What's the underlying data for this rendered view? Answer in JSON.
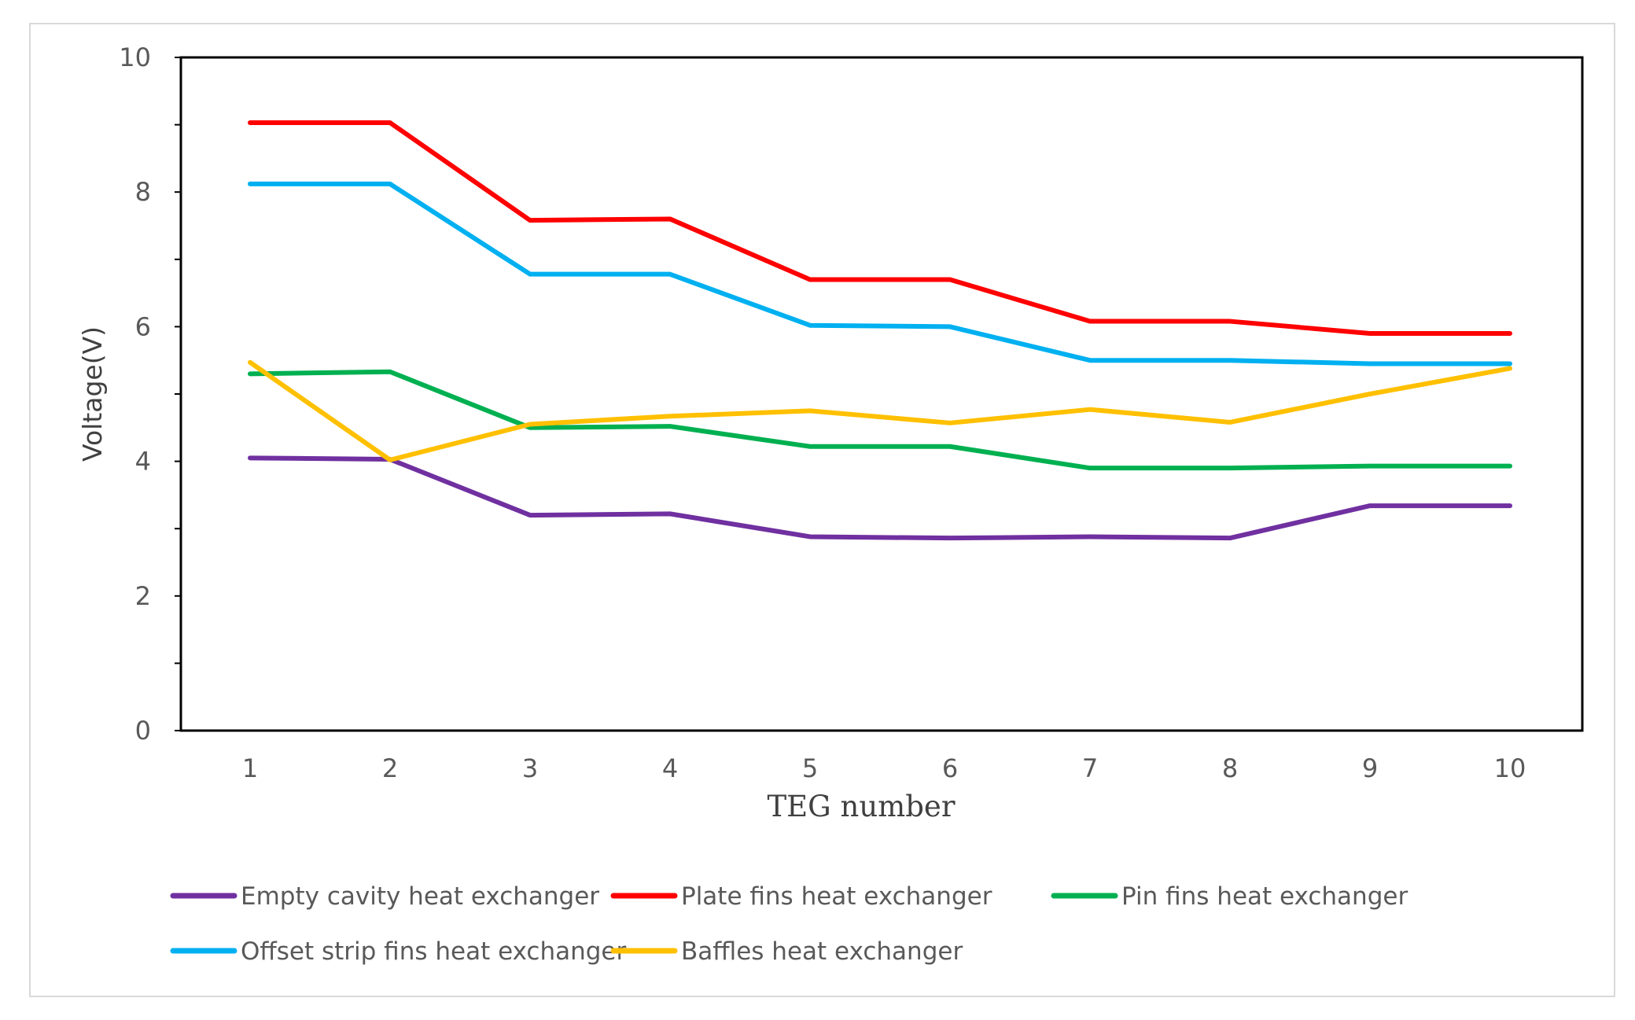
{
  "chart_data": {
    "type": "line",
    "title": "",
    "xlabel": "TEG number",
    "ylabel": "Voltage(V)",
    "ylim": [
      0,
      10
    ],
    "yticks": [
      0,
      2,
      4,
      6,
      8,
      10
    ],
    "categories": [
      "1",
      "2",
      "3",
      "4",
      "5",
      "6",
      "7",
      "8",
      "9",
      "10"
    ],
    "grid": false,
    "legend_position": "bottom",
    "series": [
      {
        "name": "Empty cavity heat exchanger",
        "color": "#7030A0",
        "values": [
          4.05,
          4.03,
          3.2,
          3.22,
          2.88,
          2.86,
          2.88,
          2.86,
          3.34,
          3.34
        ]
      },
      {
        "name": "Plate fins heat exchanger",
        "color": "#FF0000",
        "values": [
          9.03,
          9.03,
          7.58,
          7.6,
          6.7,
          6.7,
          6.08,
          6.08,
          5.9,
          5.9
        ]
      },
      {
        "name": "Pin fins heat exchanger",
        "color": "#00B050",
        "values": [
          5.3,
          5.33,
          4.5,
          4.52,
          4.22,
          4.22,
          3.9,
          3.9,
          3.93,
          3.93
        ]
      },
      {
        "name": "Offset strip fins heat exchanger",
        "color": "#00B0F0",
        "values": [
          8.12,
          8.12,
          6.78,
          6.78,
          6.02,
          6.0,
          5.5,
          5.5,
          5.45,
          5.45
        ]
      },
      {
        "name": "Baffles heat exchanger",
        "color": "#FFC000",
        "values": [
          5.47,
          4.02,
          4.55,
          4.67,
          4.75,
          4.57,
          4.77,
          4.58,
          5.0,
          5.38
        ]
      }
    ]
  }
}
